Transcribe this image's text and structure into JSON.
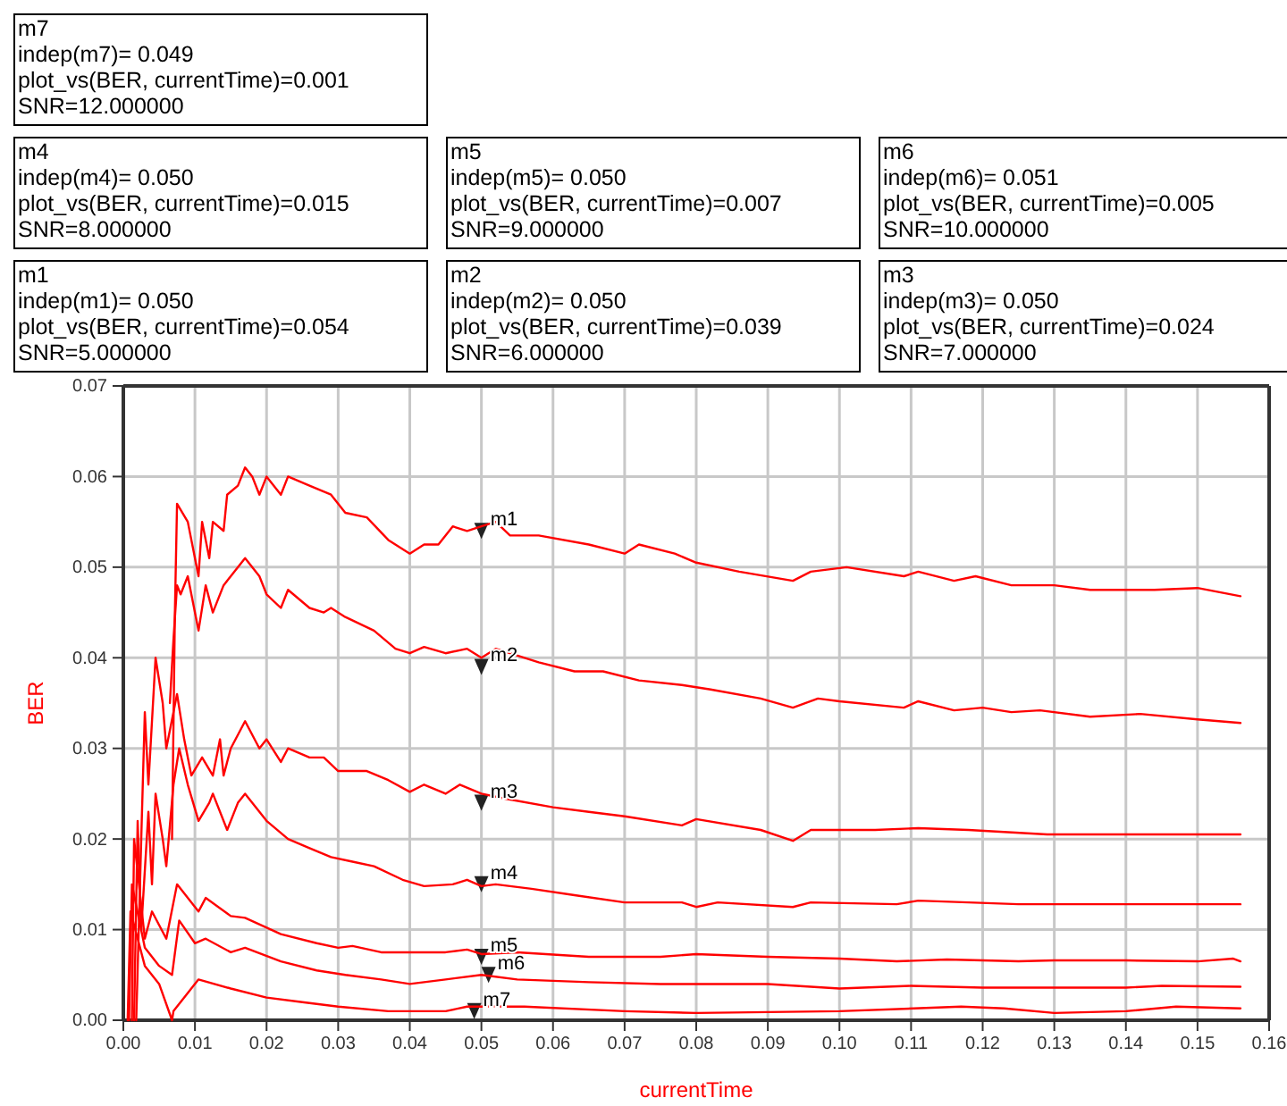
{
  "chart_data": {
    "type": "line",
    "xlabel": "currentTime",
    "ylabel": "BER",
    "xlim": [
      0,
      0.16
    ],
    "ylim": [
      0,
      0.07
    ],
    "xticks": [
      {
        "value": 0,
        "label": "0.00"
      },
      {
        "value": 0.01,
        "label": "0.01"
      },
      {
        "value": 0.02,
        "label": "0.02"
      },
      {
        "value": 0.03,
        "label": "0.03"
      },
      {
        "value": 0.04,
        "label": "0.04"
      },
      {
        "value": 0.05,
        "label": "0.05"
      },
      {
        "value": 0.06,
        "label": "0.06"
      },
      {
        "value": 0.07,
        "label": "0.07"
      },
      {
        "value": 0.08,
        "label": "0.08"
      },
      {
        "value": 0.09,
        "label": "0.09"
      },
      {
        "value": 0.1,
        "label": "0.10"
      },
      {
        "value": 0.11,
        "label": "0.11"
      },
      {
        "value": 0.12,
        "label": "0.12"
      },
      {
        "value": 0.13,
        "label": "0.13"
      },
      {
        "value": 0.14,
        "label": "0.14"
      },
      {
        "value": 0.15,
        "label": "0.15"
      },
      {
        "value": 0.16,
        "label": "0.16"
      }
    ],
    "yticks": [
      {
        "value": 0,
        "label": "0.00"
      },
      {
        "value": 0.01,
        "label": "0.01"
      },
      {
        "value": 0.02,
        "label": "0.02"
      },
      {
        "value": 0.03,
        "label": "0.03"
      },
      {
        "value": 0.04,
        "label": "0.04"
      },
      {
        "value": 0.05,
        "label": "0.05"
      },
      {
        "value": 0.06,
        "label": "0.06"
      },
      {
        "value": 0.07,
        "label": "0.07"
      }
    ],
    "grid": true,
    "line_style": "solid",
    "series": [
      {
        "color": "#ff0000",
        "x": [
          0.0068,
          0.0072,
          0.0075,
          0.009,
          0.0105,
          0.011,
          0.012,
          0.0125,
          0.014,
          0.0145,
          0.016,
          0.017,
          0.018,
          0.019,
          0.02,
          0.022,
          0.023,
          0.026,
          0.029,
          0.031,
          0.034,
          0.037,
          0.04,
          0.042,
          0.044,
          0.046,
          0.048,
          0.05,
          0.052,
          0.054,
          0.058,
          0.065,
          0.07,
          0.072,
          0.077,
          0.08,
          0.086,
          0.0935,
          0.096,
          0.101,
          0.109,
          0.111,
          0.116,
          0.119,
          0.124,
          0.13,
          0.135,
          0.144,
          0.15,
          0.156
        ],
        "values": [
          0.02,
          0.045,
          0.057,
          0.055,
          0.049,
          0.055,
          0.051,
          0.055,
          0.054,
          0.058,
          0.059,
          0.061,
          0.06,
          0.058,
          0.06,
          0.058,
          0.06,
          0.059,
          0.058,
          0.056,
          0.0555,
          0.053,
          0.0515,
          0.0525,
          0.0525,
          0.0545,
          0.054,
          0.0545,
          0.055,
          0.0535,
          0.0535,
          0.0525,
          0.0515,
          0.0525,
          0.0515,
          0.0505,
          0.0495,
          0.0485,
          0.0495,
          0.05,
          0.049,
          0.0495,
          0.0485,
          0.049,
          0.048,
          0.048,
          0.0475,
          0.0475,
          0.0477,
          0.0468
        ]
      },
      {
        "color": "#ff0000",
        "x": [
          0.0065,
          0.007,
          0.0075,
          0.008,
          0.009,
          0.0105,
          0.0115,
          0.0125,
          0.014,
          0.015,
          0.017,
          0.019,
          0.02,
          0.022,
          0.023,
          0.026,
          0.028,
          0.029,
          0.031,
          0.035,
          0.038,
          0.04,
          0.042,
          0.045,
          0.048,
          0.05,
          0.052,
          0.058,
          0.063,
          0.067,
          0.072,
          0.078,
          0.082,
          0.089,
          0.0935,
          0.097,
          0.1,
          0.109,
          0.111,
          0.116,
          0.12,
          0.124,
          0.128,
          0.135,
          0.142,
          0.15,
          0.156
        ],
        "values": [
          0.035,
          0.042,
          0.048,
          0.047,
          0.049,
          0.043,
          0.048,
          0.045,
          0.048,
          0.049,
          0.051,
          0.049,
          0.047,
          0.0455,
          0.0475,
          0.0455,
          0.045,
          0.0455,
          0.0445,
          0.043,
          0.041,
          0.0405,
          0.0412,
          0.0405,
          0.041,
          0.04,
          0.041,
          0.0395,
          0.0385,
          0.0385,
          0.0375,
          0.037,
          0.0365,
          0.0355,
          0.0345,
          0.0355,
          0.0352,
          0.0345,
          0.0352,
          0.0342,
          0.0345,
          0.034,
          0.0342,
          0.0335,
          0.0338,
          0.0332,
          0.0328
        ]
      },
      {
        "color": "#ff0000",
        "x": [
          0.0018,
          0.0025,
          0.003,
          0.0035,
          0.0045,
          0.0055,
          0.006,
          0.0075,
          0.0085,
          0.0095,
          0.011,
          0.0125,
          0.0135,
          0.014,
          0.015,
          0.017,
          0.019,
          0.02,
          0.022,
          0.023,
          0.026,
          0.028,
          0.03,
          0.034,
          0.037,
          0.04,
          0.042,
          0.045,
          0.047,
          0.05,
          0.053,
          0.06,
          0.065,
          0.07,
          0.078,
          0.08,
          0.089,
          0.0935,
          0.096,
          0.105,
          0.111,
          0.118,
          0.129,
          0.14,
          0.156
        ],
        "values": [
          0,
          0.02,
          0.034,
          0.026,
          0.04,
          0.035,
          0.03,
          0.036,
          0.031,
          0.027,
          0.029,
          0.027,
          0.031,
          0.027,
          0.03,
          0.033,
          0.03,
          0.031,
          0.0285,
          0.03,
          0.029,
          0.029,
          0.0275,
          0.0275,
          0.0265,
          0.0252,
          0.026,
          0.025,
          0.026,
          0.025,
          0.0245,
          0.0235,
          0.023,
          0.0225,
          0.0215,
          0.0222,
          0.021,
          0.0198,
          0.021,
          0.021,
          0.0212,
          0.021,
          0.0205,
          0.0205,
          0.0205
        ]
      },
      {
        "color": "#ff0000",
        "x": [
          0.0015,
          0.002,
          0.0025,
          0.0035,
          0.004,
          0.0045,
          0.0055,
          0.006,
          0.007,
          0.0078,
          0.009,
          0.0105,
          0.012,
          0.0125,
          0.0145,
          0.016,
          0.017,
          0.02,
          0.023,
          0.026,
          0.029,
          0.032,
          0.035,
          0.039,
          0.042,
          0.046,
          0.048,
          0.05,
          0.052,
          0.057,
          0.063,
          0.07,
          0.078,
          0.08,
          0.083,
          0.0935,
          0.096,
          0.108,
          0.111,
          0.125,
          0.135,
          0.156
        ],
        "values": [
          0,
          0.022,
          0.01,
          0.023,
          0.015,
          0.025,
          0.02,
          0.017,
          0.026,
          0.03,
          0.026,
          0.022,
          0.024,
          0.025,
          0.021,
          0.024,
          0.025,
          0.022,
          0.02,
          0.019,
          0.018,
          0.0175,
          0.017,
          0.0155,
          0.0148,
          0.015,
          0.0155,
          0.0148,
          0.015,
          0.0145,
          0.0138,
          0.013,
          0.013,
          0.0125,
          0.013,
          0.0125,
          0.013,
          0.0128,
          0.0132,
          0.0128,
          0.0128,
          0.0128
        ]
      },
      {
        "color": "#ff0000",
        "x": [
          0.0012,
          0.0015,
          0.003,
          0.004,
          0.006,
          0.0075,
          0.0105,
          0.0115,
          0.015,
          0.017,
          0.022,
          0.027,
          0.03,
          0.032,
          0.036,
          0.045,
          0.048,
          0.05,
          0.055,
          0.065,
          0.075,
          0.08,
          0.09,
          0.1,
          0.108,
          0.115,
          0.125,
          0.13,
          0.14,
          0.15,
          0.155,
          0.156
        ],
        "values": [
          0,
          0.02,
          0.009,
          0.012,
          0.009,
          0.015,
          0.012,
          0.0135,
          0.0115,
          0.0113,
          0.0095,
          0.0085,
          0.008,
          0.0082,
          0.0075,
          0.0075,
          0.0078,
          0.0073,
          0.0075,
          0.007,
          0.007,
          0.0073,
          0.007,
          0.0068,
          0.0065,
          0.0067,
          0.0065,
          0.0066,
          0.0066,
          0.0065,
          0.0068,
          0.0065
        ]
      },
      {
        "color": "#ff0000",
        "x": [
          0.0008,
          0.0012,
          0.003,
          0.005,
          0.0068,
          0.0078,
          0.01,
          0.0115,
          0.015,
          0.017,
          0.022,
          0.027,
          0.031,
          0.036,
          0.04,
          0.045,
          0.05,
          0.055,
          0.065,
          0.075,
          0.09,
          0.1,
          0.11,
          0.12,
          0.14,
          0.145,
          0.156
        ],
        "values": [
          0,
          0.015,
          0.008,
          0.006,
          0.005,
          0.011,
          0.0085,
          0.009,
          0.0075,
          0.008,
          0.0065,
          0.0055,
          0.005,
          0.0045,
          0.004,
          0.0045,
          0.005,
          0.0045,
          0.0042,
          0.004,
          0.004,
          0.0035,
          0.0038,
          0.0036,
          0.0036,
          0.0038,
          0.0037
        ]
      },
      {
        "color": "#ff0000",
        "x": [
          0.0006,
          0.001,
          0.003,
          0.005,
          0.0068,
          0.007,
          0.009,
          0.0105,
          0.015,
          0.02,
          0.025,
          0.03,
          0.037,
          0.045,
          0.048,
          0.056,
          0.07,
          0.08,
          0.1,
          0.117,
          0.123,
          0.13,
          0.14,
          0.147,
          0.156
        ],
        "values": [
          0,
          0.012,
          0.006,
          0.004,
          0,
          0.001,
          0.003,
          0.0045,
          0.0035,
          0.0025,
          0.002,
          0.0015,
          0.001,
          0.001,
          0.0015,
          0.0015,
          0.001,
          0.0008,
          0.001,
          0.0015,
          0.0013,
          0.0008,
          0.001,
          0.0015,
          0.0013
        ]
      },
      {
        "type": "scatter",
        "color": "#222222",
        "x": [
          0.05,
          0.05,
          0.05,
          0.05,
          0.05,
          0.051,
          0.049
        ],
        "values": [
          0.054,
          0.039,
          0.024,
          0.015,
          0.007,
          0.005,
          0.001
        ]
      }
    ],
    "annotations": [
      "m7\nindep(m7)= 0.049\nplot_vs(BER, currentTime)=0.001\nSNR=12.000000",
      "m4\nindep(m4)= 0.050\nplot_vs(BER, currentTime)=0.015\nSNR=8.000000",
      "m5\nindep(m5)= 0.050\nplot_vs(BER, currentTime)=0.007\nSNR=9.000000",
      "m6\nindep(m6)= 0.051\nplot_vs(BER, currentTime)=0.005\nSNR=10.000000",
      "m1\nindep(m1)= 0.050\nplot_vs(BER, currentTime)=0.054\nSNR=5.000000",
      "m2\nindep(m2)= 0.050\nplot_vs(BER, currentTime)=0.039\nSNR=6.000000",
      "m3\nindep(m3)= 0.050\nplot_vs(BER, currentTime)=0.024\nSNR=7.000000",
      {
        "text": "m1",
        "x": 0.05,
        "y": 0.054
      },
      {
        "text": "m2",
        "x": 0.05,
        "y": 0.039
      },
      {
        "text": "m3",
        "x": 0.05,
        "y": 0.024
      },
      {
        "text": "m4",
        "x": 0.05,
        "y": 0.015
      },
      {
        "text": "m5",
        "x": 0.05,
        "y": 0.007
      },
      {
        "text": "m6",
        "x": 0.051,
        "y": 0.005
      },
      {
        "text": "m7",
        "x": 0.049,
        "y": 0.001
      }
    ]
  }
}
